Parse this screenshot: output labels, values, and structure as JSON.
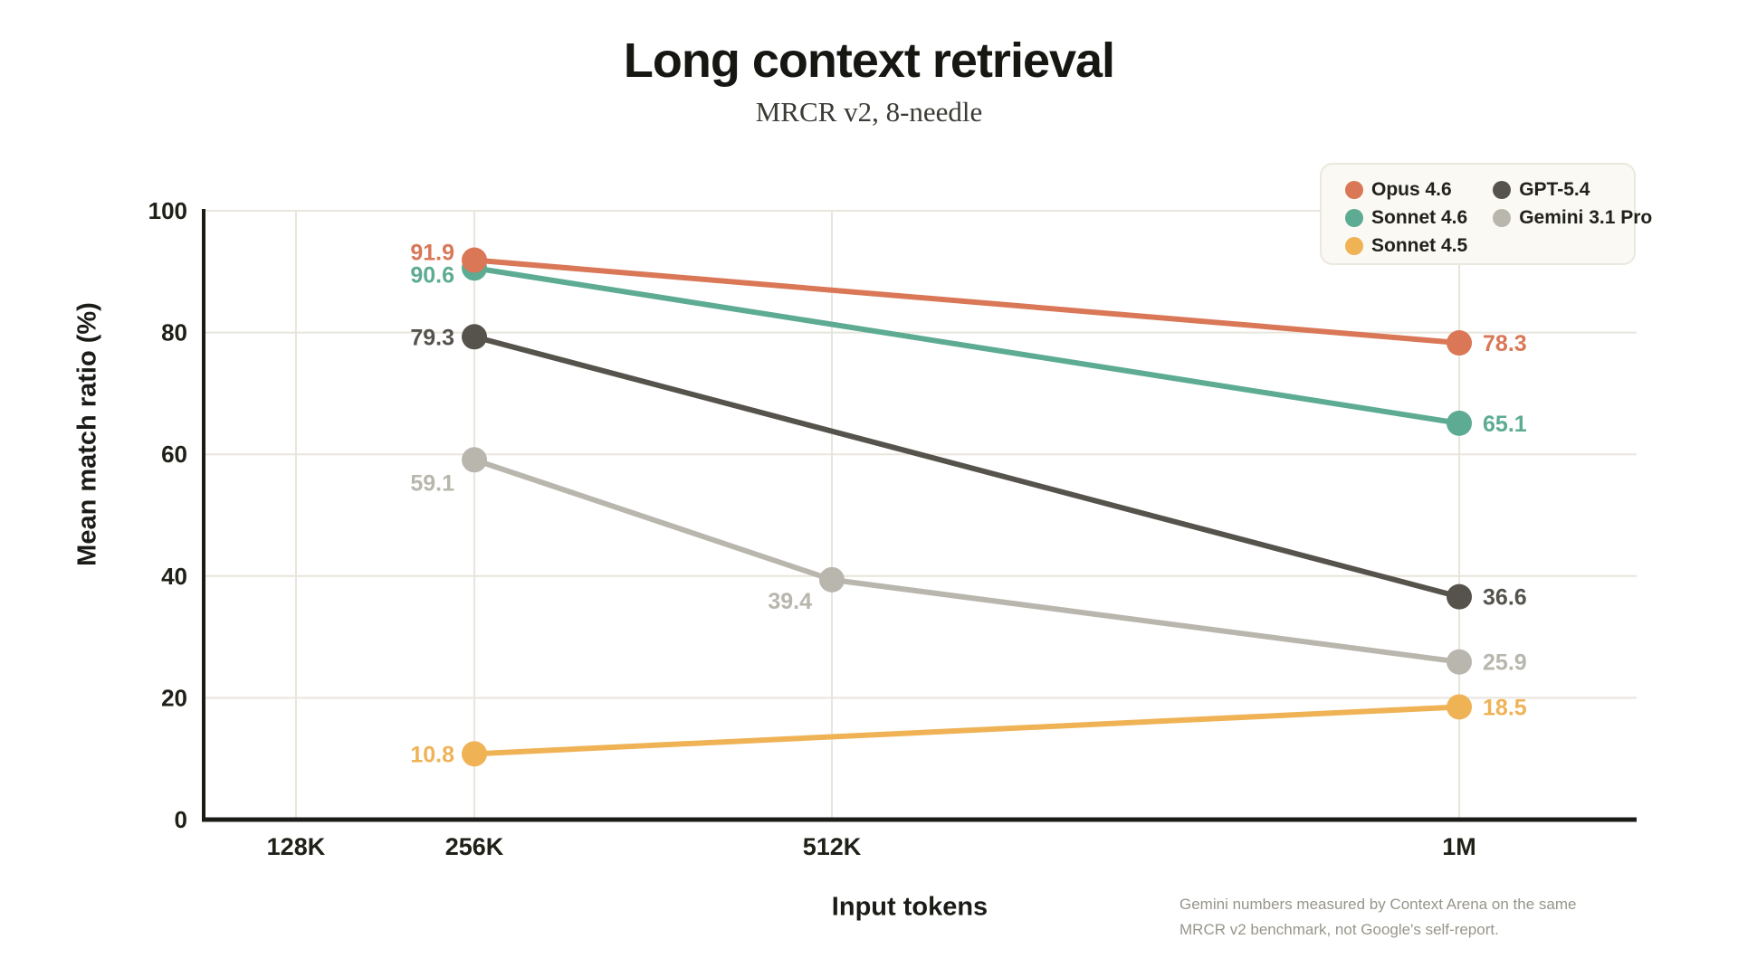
{
  "header": {
    "title": "Long context retrieval",
    "subtitle": "MRCR v2, 8-needle"
  },
  "footnote": "Gemini numbers measured by Context Arena on the same MRCR v2 benchmark, not Google's self-report.",
  "colors": {
    "opus": "#D97757",
    "sonnet46": "#5CAB92",
    "sonnet45": "#EFB255",
    "gpt": "#55534C",
    "gemini": "#B8B6AD",
    "grid": "#E8E5DC",
    "axis": "#1b1b18",
    "tick_text": "#202019",
    "legend_bg": "#faf9f3"
  },
  "chart_data": {
    "type": "line",
    "title": "Long context retrieval",
    "subtitle": "MRCR v2, 8-needle",
    "xlabel": "Input tokens",
    "ylabel": "Mean match ratio (%)",
    "categories": [
      "128K",
      "256K",
      "512K",
      "1M"
    ],
    "ylim": [
      0,
      100
    ],
    "yticks": [
      0,
      20,
      40,
      60,
      80,
      100
    ],
    "grid": true,
    "legend_position": "top-right",
    "series": [
      {
        "name": "Opus 4.6",
        "color": "#D97757",
        "z": 4,
        "points": [
          {
            "x": "256K",
            "y": 91.9,
            "label_dy": -9
          },
          {
            "x": "1M",
            "y": 78.3
          }
        ]
      },
      {
        "name": "Sonnet 4.6",
        "color": "#5CAB92",
        "z": 3,
        "points": [
          {
            "x": "256K",
            "y": 90.6,
            "label_dy": 7
          },
          {
            "x": "1M",
            "y": 65.1
          }
        ]
      },
      {
        "name": "Sonnet 4.5",
        "color": "#EFB255",
        "z": 2,
        "points": [
          {
            "x": "256K",
            "y": 10.8
          },
          {
            "x": "1M",
            "y": 18.5
          }
        ]
      },
      {
        "name": "GPT-5.4",
        "color": "#55534C",
        "z": 1,
        "points": [
          {
            "x": "256K",
            "y": 79.3
          },
          {
            "x": "1M",
            "y": 36.6
          }
        ]
      },
      {
        "name": "Gemini 3.1 Pro",
        "color": "#B8B6AD",
        "z": 0,
        "points": [
          {
            "x": "256K",
            "y": 59.1,
            "label_dy": 25
          },
          {
            "x": "512K",
            "y": 39.4
          },
          {
            "x": "1M",
            "y": 25.9
          }
        ]
      }
    ],
    "layout": {
      "x_tick_pos": [
        0.0644,
        0.1889,
        0.4384,
        0.8762
      ]
    }
  }
}
